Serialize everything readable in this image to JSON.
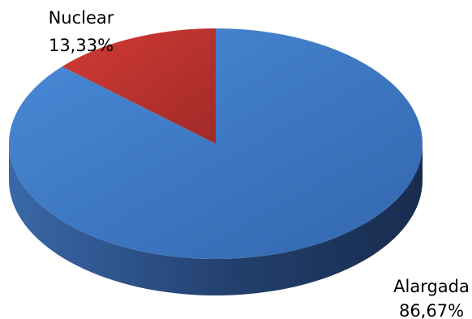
{
  "chart_data": {
    "type": "pie",
    "style": "3d",
    "slices": [
      {
        "label": "Alargada",
        "percent_label": "86,67%",
        "value": 86.67,
        "color": "#3a76c4",
        "side_color": "#2a4f86"
      },
      {
        "label": "Nuclear",
        "percent_label": "13,33%",
        "value": 13.33,
        "color": "#c0322e",
        "side_color": "#7d1d1b"
      }
    ],
    "legend": "none"
  }
}
